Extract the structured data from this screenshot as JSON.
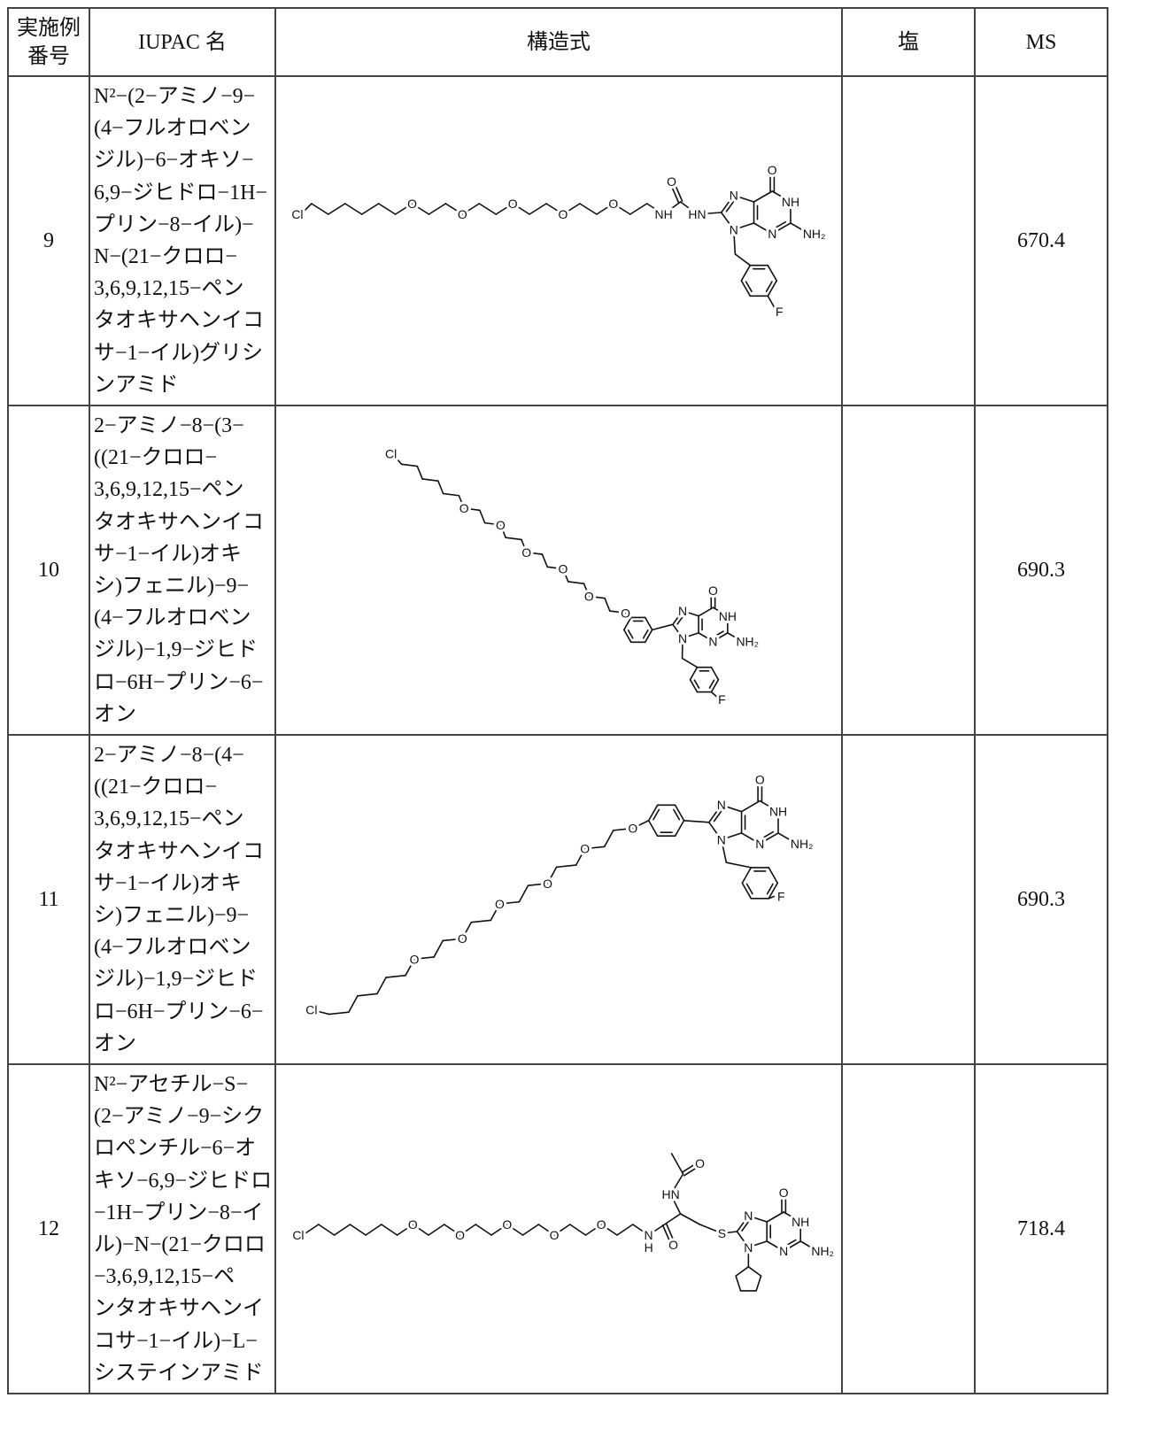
{
  "table": {
    "headers": {
      "example_no": [
        "実施例",
        "番号"
      ],
      "iupac": "IUPAC 名",
      "structure": "構造式",
      "salt": "塩",
      "ms": "MS"
    },
    "rows": [
      {
        "no": "9",
        "iupac_lines": [
          "N²−(2−アミノ−9−",
          "(4−フルオロベン",
          "ジル)−6−オキソ−",
          "6,9−ジヒドロ−1H−",
          "プリン−8−イル)−",
          "N−(21−クロロ−",
          "3,6,9,12,15−ペン",
          "タオキサヘンイコ",
          "サ−1−イル)グリシ",
          "ンアミド"
        ],
        "salt": "",
        "ms": "670.4"
      },
      {
        "no": "10",
        "iupac_lines": [
          "2−アミノ−8−(3−",
          "((21−クロロ−",
          "3,6,9,12,15−ペン",
          "タオキサヘンイコ",
          "サ−1−イル)オキ",
          "シ)フェニル)−9−",
          "(4−フルオロベン",
          "ジル)−1,9−ジヒド",
          "ロ−6H−プリン−6−",
          "オン"
        ],
        "salt": "",
        "ms": "690.3"
      },
      {
        "no": "11",
        "iupac_lines": [
          "2−アミノ−8−(4−",
          "((21−クロロ−",
          "3,6,9,12,15−ペン",
          "タオキサヘンイコ",
          "サ−1−イル)オキ",
          "シ)フェニル)−9−",
          "(4−フルオロベン",
          "ジル)−1,9−ジヒド",
          "ロ−6H−プリン−6−",
          "オン"
        ],
        "salt": "",
        "ms": "690.3"
      },
      {
        "no": "12",
        "iupac_lines": [
          "N²−アセチル−S−",
          "(2−アミノ−9−シク",
          "ロペンチル−6−オ",
          "キソ−6,9−ジヒドロ",
          "−1H−プリン−8−イ",
          "ル)−N−(21−クロロ",
          "−3,6,9,12,15−ペ",
          "ンタオキサヘンイ",
          "コサ−1−イル)−L−",
          "システインアミド"
        ],
        "salt": "",
        "ms": "718.4"
      }
    ]
  },
  "structure_labels": {
    "Cl": "Cl",
    "O": "O",
    "N": "N",
    "NH": "NH",
    "HN": "HN",
    "NH2": "NH₂",
    "F": "F",
    "S": "S",
    "H": "H"
  }
}
